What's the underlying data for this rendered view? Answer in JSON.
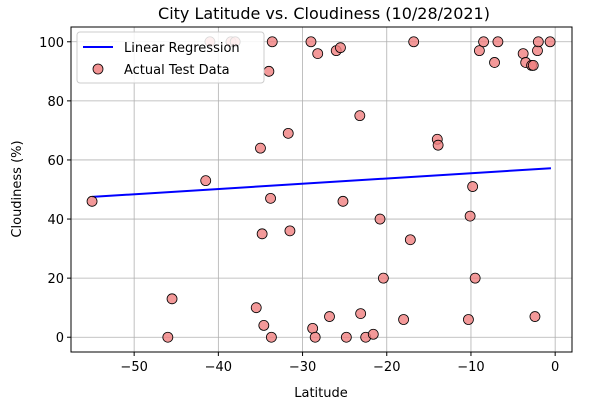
{
  "chart_data": {
    "type": "scatter",
    "title": "City Latitude vs. Cloudiness (10/28/2021)",
    "xlabel": "Latitude",
    "ylabel": "Cloudiness (%)",
    "xlim": [
      -57.5,
      2
    ],
    "ylim": [
      -5,
      105
    ],
    "xticks": [
      -50,
      -40,
      -30,
      -20,
      -10,
      0
    ],
    "xtick_labels": [
      "−50",
      "−40",
      "−30",
      "−20",
      "−10",
      "0"
    ],
    "yticks": [
      0,
      20,
      40,
      60,
      80,
      100
    ],
    "ytick_labels": [
      "0",
      "20",
      "40",
      "60",
      "80",
      "100"
    ],
    "grid": true,
    "legend_position": "top-left",
    "series": [
      {
        "name": "Linear Regression",
        "type": "line",
        "color": "#0000ff",
        "x": [
          -55,
          -0.5
        ],
        "y": [
          47.5,
          57.2
        ]
      },
      {
        "name": "Actual Test Data",
        "type": "scatter",
        "color": "#f08080",
        "edge_color": "#000000",
        "points": [
          [
            -55,
            46
          ],
          [
            -46,
            0
          ],
          [
            -45.5,
            13
          ],
          [
            -41.5,
            53
          ],
          [
            -41,
            100
          ],
          [
            -38.5,
            100
          ],
          [
            -38,
            100
          ],
          [
            -35.5,
            10
          ],
          [
            -35,
            64
          ],
          [
            -34.8,
            35
          ],
          [
            -34.6,
            4
          ],
          [
            -34,
            90
          ],
          [
            -33.8,
            47
          ],
          [
            -33.6,
            100
          ],
          [
            -33.7,
            0
          ],
          [
            -31.7,
            69
          ],
          [
            -31.5,
            36
          ],
          [
            -29,
            100
          ],
          [
            -28.8,
            3
          ],
          [
            -28.5,
            0
          ],
          [
            -28.2,
            96
          ],
          [
            -26.8,
            7
          ],
          [
            -26,
            97
          ],
          [
            -25.5,
            98
          ],
          [
            -25.2,
            46
          ],
          [
            -24.8,
            0
          ],
          [
            -23.2,
            75
          ],
          [
            -23.1,
            8
          ],
          [
            -22.5,
            0
          ],
          [
            -21.6,
            1
          ],
          [
            -20.8,
            40
          ],
          [
            -20.4,
            20
          ],
          [
            -18,
            6
          ],
          [
            -17.2,
            33
          ],
          [
            -16.8,
            100
          ],
          [
            -14,
            67
          ],
          [
            -13.9,
            65
          ],
          [
            -10.3,
            6
          ],
          [
            -10.1,
            41
          ],
          [
            -9.8,
            51
          ],
          [
            -9.5,
            20
          ],
          [
            -9,
            97
          ],
          [
            -8.5,
            100
          ],
          [
            -7.2,
            93
          ],
          [
            -6.8,
            100
          ],
          [
            -3.8,
            96
          ],
          [
            -3.5,
            93
          ],
          [
            -2.8,
            92
          ],
          [
            -2.6,
            92
          ],
          [
            -2.4,
            7
          ],
          [
            -2.1,
            97
          ],
          [
            -2,
            100
          ],
          [
            -0.6,
            100
          ]
        ]
      }
    ]
  }
}
